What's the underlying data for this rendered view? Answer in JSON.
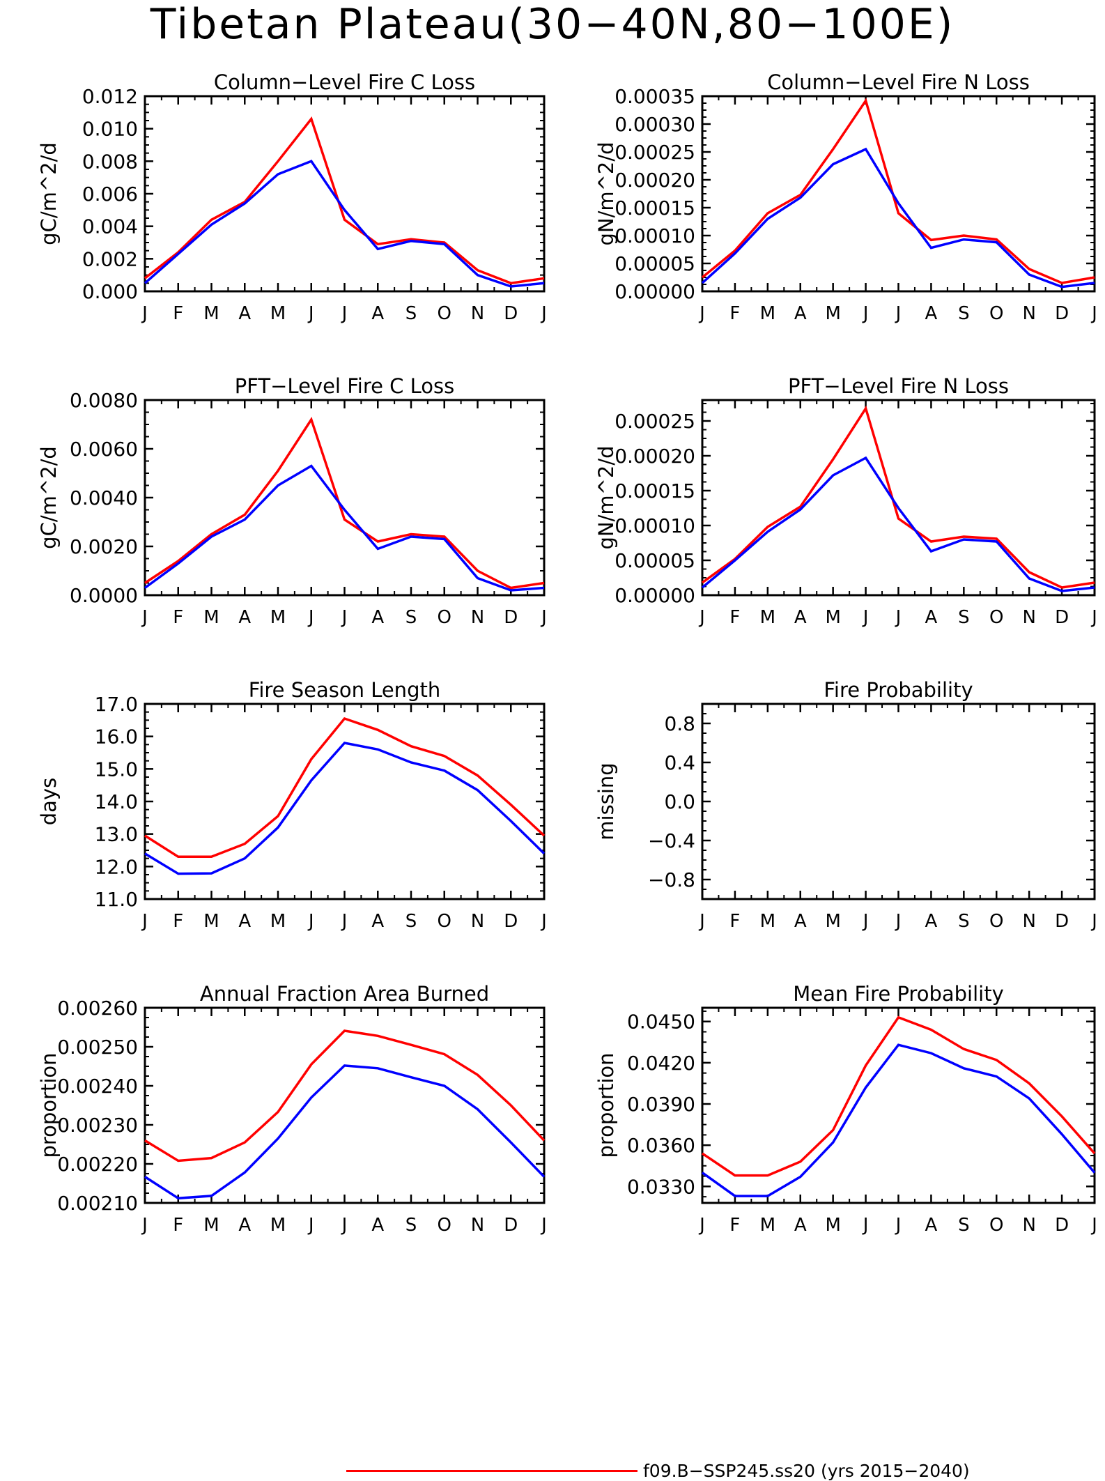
{
  "figure": {
    "title": "Tibetan Plateau(30−40N,80−100E)"
  },
  "legend": {
    "label": "f09.B−SSP245.ss20 (yrs 2015−2040)",
    "color": "#ff0000"
  },
  "colors": {
    "series_red": "#ff0000",
    "series_blue": "#0000ff"
  },
  "chart_data": [
    {
      "type": "line",
      "title": "Column−Level Fire C Loss",
      "ylabel": "gC/m^2/d",
      "categories": [
        "J",
        "F",
        "M",
        "A",
        "M",
        "J",
        "J",
        "A",
        "S",
        "O",
        "N",
        "D",
        "J"
      ],
      "ylim": [
        0,
        0.012
      ],
      "yticks": [
        0,
        0.002,
        0.004,
        0.006,
        0.008,
        0.01,
        0.012
      ],
      "ytick_labels": [
        "0.000",
        "0.002",
        "0.004",
        "0.006",
        "0.008",
        "0.010",
        "0.012"
      ],
      "series": [
        {
          "color": "#ff0000",
          "values": [
            0.0008,
            0.0024,
            0.0044,
            0.0055,
            0.008,
            0.0106,
            0.0044,
            0.0029,
            0.0032,
            0.003,
            0.0013,
            0.0005,
            0.0008
          ]
        },
        {
          "color": "#0000ff",
          "values": [
            0.0005,
            0.0023,
            0.0041,
            0.0054,
            0.0072,
            0.008,
            0.005,
            0.0026,
            0.0031,
            0.0029,
            0.001,
            0.0003,
            0.0005
          ]
        }
      ]
    },
    {
      "type": "line",
      "title": "Column−Level Fire N Loss",
      "ylabel": "gN/m^2/d",
      "categories": [
        "J",
        "F",
        "M",
        "A",
        "M",
        "J",
        "J",
        "A",
        "S",
        "O",
        "N",
        "D",
        "J"
      ],
      "ylim": [
        0,
        0.00035
      ],
      "yticks": [
        0,
        5e-05,
        0.0001,
        0.00015,
        0.0002,
        0.00025,
        0.0003,
        0.00035
      ],
      "ytick_labels": [
        "0.00000",
        "0.00005",
        "0.00010",
        "0.00015",
        "0.00020",
        "0.00025",
        "0.00030",
        "0.00035"
      ],
      "series": [
        {
          "color": "#ff0000",
          "values": [
            2.5e-05,
            7.3e-05,
            0.00014,
            0.000173,
            0.000255,
            0.000342,
            0.00014,
            9.2e-05,
            0.0001,
            9.3e-05,
            4e-05,
            1.5e-05,
            2.5e-05
          ]
        },
        {
          "color": "#0000ff",
          "values": [
            1.5e-05,
            6.8e-05,
            0.00013,
            0.000168,
            0.000228,
            0.000255,
            0.000158,
            7.8e-05,
            9.3e-05,
            8.8e-05,
            3e-05,
            8e-06,
            1.5e-05
          ]
        }
      ]
    },
    {
      "type": "line",
      "title": "PFT−Level Fire C Loss",
      "ylabel": "gC/m^2/d",
      "categories": [
        "J",
        "F",
        "M",
        "A",
        "M",
        "J",
        "J",
        "A",
        "S",
        "O",
        "N",
        "D",
        "J"
      ],
      "ylim": [
        0,
        0.008
      ],
      "yticks": [
        0,
        0.002,
        0.004,
        0.006,
        0.008
      ],
      "ytick_labels": [
        "0.0000",
        "0.0020",
        "0.0040",
        "0.0060",
        "0.0080"
      ],
      "series": [
        {
          "color": "#ff0000",
          "values": [
            0.0005,
            0.0014,
            0.0025,
            0.0033,
            0.0051,
            0.0072,
            0.0031,
            0.0022,
            0.0025,
            0.0024,
            0.001,
            0.0003,
            0.0005
          ]
        },
        {
          "color": "#0000ff",
          "values": [
            0.0003,
            0.0013,
            0.0024,
            0.0031,
            0.0045,
            0.0053,
            0.0035,
            0.0019,
            0.0024,
            0.0023,
            0.0007,
            0.0002,
            0.0003
          ]
        }
      ]
    },
    {
      "type": "line",
      "title": "PFT−Level Fire N Loss",
      "ylabel": "gN/m^2/d",
      "categories": [
        "J",
        "F",
        "M",
        "A",
        "M",
        "J",
        "J",
        "A",
        "S",
        "O",
        "N",
        "D",
        "J"
      ],
      "ylim": [
        0,
        0.00028
      ],
      "yticks": [
        0,
        5e-05,
        0.0001,
        0.00015,
        0.0002,
        0.00025
      ],
      "ytick_labels": [
        "0.00000",
        "0.00005",
        "0.00010",
        "0.00015",
        "0.00020",
        "0.00025"
      ],
      "series": [
        {
          "color": "#ff0000",
          "values": [
            1.8e-05,
            5.2e-05,
            9.8e-05,
            0.000127,
            0.000195,
            0.000268,
            0.00011,
            7.7e-05,
            8.4e-05,
            8.1e-05,
            3.3e-05,
            1.1e-05,
            1.8e-05
          ]
        },
        {
          "color": "#0000ff",
          "values": [
            1.1e-05,
            5e-05,
            9.1e-05,
            0.000123,
            0.000172,
            0.000197,
            0.000125,
            6.3e-05,
            8e-05,
            7.7e-05,
            2.4e-05,
            6e-06,
            1.1e-05
          ]
        }
      ]
    },
    {
      "type": "line",
      "title": "Fire Season Length",
      "ylabel": "days",
      "categories": [
        "J",
        "F",
        "M",
        "A",
        "M",
        "J",
        "J",
        "A",
        "S",
        "O",
        "N",
        "D",
        "J"
      ],
      "ylim": [
        11,
        17
      ],
      "yticks": [
        11,
        12,
        13,
        14,
        15,
        16,
        17
      ],
      "ytick_labels": [
        "11.0",
        "12.0",
        "13.0",
        "14.0",
        "15.0",
        "16.0",
        "17.0"
      ],
      "series": [
        {
          "color": "#ff0000",
          "values": [
            12.95,
            12.3,
            12.3,
            12.7,
            13.55,
            15.3,
            16.55,
            16.2,
            15.7,
            15.4,
            14.8,
            13.9,
            12.95
          ]
        },
        {
          "color": "#0000ff",
          "values": [
            12.4,
            11.78,
            11.79,
            12.25,
            13.2,
            14.65,
            15.8,
            15.6,
            15.2,
            14.95,
            14.35,
            13.4,
            12.4
          ]
        }
      ]
    },
    {
      "type": "line",
      "title": "Fire Probability",
      "ylabel": "missing",
      "categories": [
        "J",
        "F",
        "M",
        "A",
        "M",
        "J",
        "J",
        "A",
        "S",
        "O",
        "N",
        "D",
        "J"
      ],
      "ylim": [
        -1,
        1
      ],
      "yticks": [
        -0.8,
        -0.4,
        0,
        0.4,
        0.8
      ],
      "ytick_labels": [
        "−0.8",
        "−0.4",
        "0.0",
        "0.4",
        "0.8"
      ],
      "series": []
    },
    {
      "type": "line",
      "title": "Annual Fraction Area Burned",
      "ylabel": "proportion",
      "categories": [
        "J",
        "F",
        "M",
        "A",
        "M",
        "J",
        "J",
        "A",
        "S",
        "O",
        "N",
        "D",
        "J"
      ],
      "ylim": [
        0.0021,
        0.0026
      ],
      "yticks": [
        0.0021,
        0.0022,
        0.0023,
        0.0024,
        0.0025,
        0.0026
      ],
      "ytick_labels": [
        "0.00210",
        "0.00220",
        "0.00230",
        "0.00240",
        "0.00250",
        "0.00260"
      ],
      "series": [
        {
          "color": "#ff0000",
          "values": [
            0.00226,
            0.002208,
            0.002215,
            0.002255,
            0.002333,
            0.002455,
            0.002541,
            0.002528,
            0.002505,
            0.002481,
            0.002428,
            0.00235,
            0.00226
          ]
        },
        {
          "color": "#0000ff",
          "values": [
            0.002167,
            0.002112,
            0.002118,
            0.002178,
            0.002265,
            0.00237,
            0.002452,
            0.002445,
            0.002422,
            0.0024,
            0.00234,
            0.002255,
            0.002167
          ]
        }
      ]
    },
    {
      "type": "line",
      "title": "Mean Fire Probability",
      "ylabel": "proportion",
      "categories": [
        "J",
        "F",
        "M",
        "A",
        "M",
        "J",
        "J",
        "A",
        "S",
        "O",
        "N",
        "D",
        "J"
      ],
      "ylim": [
        0.0318,
        0.046
      ],
      "yticks": [
        0.033,
        0.036,
        0.039,
        0.042,
        0.045
      ],
      "ytick_labels": [
        "0.0330",
        "0.0360",
        "0.0390",
        "0.0420",
        "0.0450"
      ],
      "series": [
        {
          "color": "#ff0000",
          "values": [
            0.0354,
            0.0338,
            0.0338,
            0.0348,
            0.0371,
            0.0418,
            0.0453,
            0.0444,
            0.043,
            0.0422,
            0.0405,
            0.0381,
            0.0354
          ]
        },
        {
          "color": "#0000ff",
          "values": [
            0.034,
            0.0323,
            0.0323,
            0.0337,
            0.0362,
            0.0402,
            0.0433,
            0.0427,
            0.0416,
            0.041,
            0.0394,
            0.0368,
            0.034
          ]
        }
      ]
    }
  ]
}
